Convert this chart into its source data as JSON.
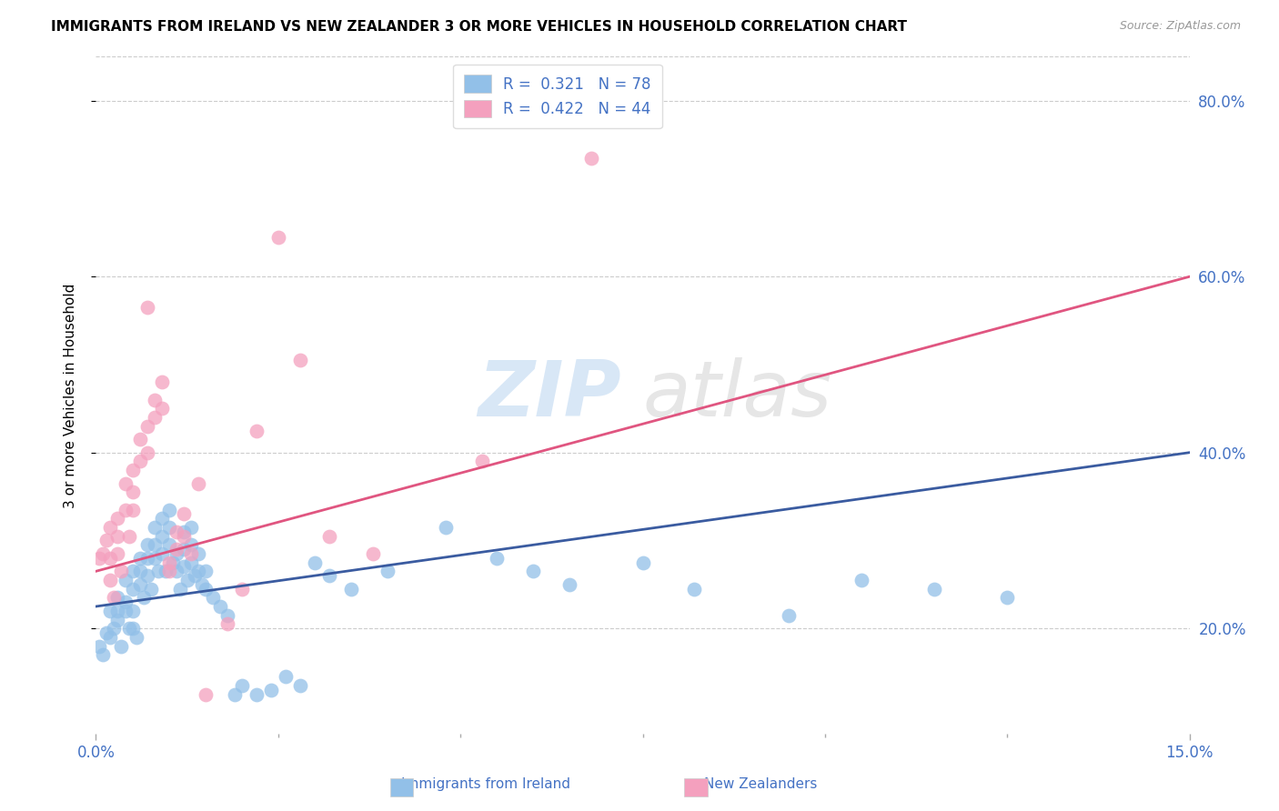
{
  "title": "IMMIGRANTS FROM IRELAND VS NEW ZEALANDER 3 OR MORE VEHICLES IN HOUSEHOLD CORRELATION CHART",
  "source": "Source: ZipAtlas.com",
  "xlabel_left": "Immigrants from Ireland",
  "xlabel_right": "New Zealanders",
  "ylabel": "3 or more Vehicles in Household",
  "xlim": [
    0.0,
    0.15
  ],
  "ylim": [
    0.08,
    0.85
  ],
  "yticks_right": [
    0.2,
    0.4,
    0.6,
    0.8
  ],
  "ytick_labels_right": [
    "20.0%",
    "40.0%",
    "60.0%",
    "80.0%"
  ],
  "xticks": [
    0.0,
    0.15
  ],
  "xtick_labels": [
    "0.0%",
    "15.0%"
  ],
  "xticks_minor": [
    0.025,
    0.05,
    0.075,
    0.1,
    0.125
  ],
  "legend_R_blue": "0.321",
  "legend_N_blue": "78",
  "legend_R_pink": "0.422",
  "legend_N_pink": "44",
  "color_blue": "#92C0E8",
  "color_pink": "#F4A0BE",
  "color_blue_line": "#3A5BA0",
  "color_pink_line": "#E05580",
  "color_axis_labels": "#4472C4",
  "watermark_zip": "ZIP",
  "watermark_atlas": "atlas",
  "blue_scatter_x": [
    0.0005,
    0.001,
    0.0015,
    0.002,
    0.002,
    0.0025,
    0.003,
    0.003,
    0.003,
    0.0035,
    0.004,
    0.004,
    0.004,
    0.0045,
    0.005,
    0.005,
    0.005,
    0.005,
    0.0055,
    0.006,
    0.006,
    0.006,
    0.0065,
    0.007,
    0.007,
    0.007,
    0.0075,
    0.008,
    0.008,
    0.008,
    0.0085,
    0.009,
    0.009,
    0.009,
    0.0095,
    0.01,
    0.01,
    0.01,
    0.0105,
    0.011,
    0.011,
    0.0115,
    0.012,
    0.012,
    0.012,
    0.0125,
    0.013,
    0.013,
    0.013,
    0.0135,
    0.014,
    0.014,
    0.0145,
    0.015,
    0.015,
    0.016,
    0.017,
    0.018,
    0.019,
    0.02,
    0.022,
    0.024,
    0.026,
    0.028,
    0.03,
    0.032,
    0.035,
    0.04,
    0.048,
    0.055,
    0.06,
    0.065,
    0.075,
    0.082,
    0.095,
    0.105,
    0.115,
    0.125
  ],
  "blue_scatter_y": [
    0.18,
    0.17,
    0.195,
    0.22,
    0.19,
    0.2,
    0.235,
    0.22,
    0.21,
    0.18,
    0.255,
    0.23,
    0.22,
    0.2,
    0.265,
    0.245,
    0.22,
    0.2,
    0.19,
    0.28,
    0.265,
    0.25,
    0.235,
    0.295,
    0.28,
    0.26,
    0.245,
    0.315,
    0.295,
    0.28,
    0.265,
    0.325,
    0.305,
    0.285,
    0.265,
    0.335,
    0.315,
    0.295,
    0.275,
    0.285,
    0.265,
    0.245,
    0.31,
    0.29,
    0.27,
    0.255,
    0.315,
    0.295,
    0.275,
    0.26,
    0.285,
    0.265,
    0.25,
    0.265,
    0.245,
    0.235,
    0.225,
    0.215,
    0.125,
    0.135,
    0.125,
    0.13,
    0.145,
    0.135,
    0.275,
    0.26,
    0.245,
    0.265,
    0.315,
    0.28,
    0.265,
    0.25,
    0.275,
    0.245,
    0.215,
    0.255,
    0.245,
    0.235
  ],
  "pink_scatter_x": [
    0.0005,
    0.001,
    0.0015,
    0.002,
    0.002,
    0.002,
    0.0025,
    0.003,
    0.003,
    0.003,
    0.0035,
    0.004,
    0.004,
    0.0045,
    0.005,
    0.005,
    0.005,
    0.006,
    0.006,
    0.007,
    0.007,
    0.007,
    0.008,
    0.008,
    0.009,
    0.009,
    0.01,
    0.01,
    0.011,
    0.011,
    0.012,
    0.012,
    0.013,
    0.014,
    0.015,
    0.018,
    0.02,
    0.022,
    0.025,
    0.028,
    0.032,
    0.038,
    0.053,
    0.068
  ],
  "pink_scatter_y": [
    0.28,
    0.285,
    0.3,
    0.315,
    0.28,
    0.255,
    0.235,
    0.325,
    0.305,
    0.285,
    0.265,
    0.365,
    0.335,
    0.305,
    0.38,
    0.355,
    0.335,
    0.415,
    0.39,
    0.43,
    0.4,
    0.565,
    0.46,
    0.44,
    0.48,
    0.45,
    0.275,
    0.265,
    0.31,
    0.29,
    0.33,
    0.305,
    0.285,
    0.365,
    0.125,
    0.205,
    0.245,
    0.425,
    0.645,
    0.505,
    0.305,
    0.285,
    0.39,
    0.735
  ],
  "blue_trend_x": [
    0.0,
    0.15
  ],
  "blue_trend_y": [
    0.225,
    0.4
  ],
  "pink_trend_x": [
    0.0,
    0.15
  ],
  "pink_trend_y": [
    0.265,
    0.6
  ]
}
